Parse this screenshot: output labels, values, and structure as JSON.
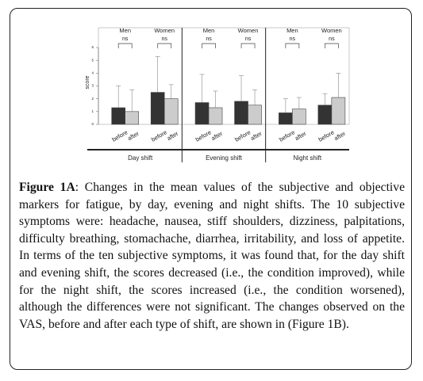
{
  "chart_data": {
    "type": "bar",
    "y_label": "score",
    "ylim": [
      0,
      6
    ],
    "yticks": [
      0,
      1,
      2,
      3,
      4,
      5,
      6
    ],
    "bar_labels": [
      "before",
      "after"
    ],
    "colors": [
      "#333333",
      "#cccccc"
    ],
    "shifts": [
      "Day shift",
      "Evening shift",
      "Night shift"
    ],
    "groups": [
      {
        "sex": "Men",
        "significance": "ns",
        "values": [
          1.3,
          1.0
        ],
        "errors": [
          1.7,
          1.7
        ]
      },
      {
        "sex": "Women",
        "significance": "ns",
        "values": [
          2.5,
          2.0
        ],
        "errors": [
          2.8,
          1.1
        ]
      },
      {
        "sex": "Men",
        "significance": "ns",
        "values": [
          1.7,
          1.3
        ],
        "errors": [
          2.2,
          1.3
        ]
      },
      {
        "sex": "Women",
        "significance": "ns",
        "values": [
          1.8,
          1.5
        ],
        "errors": [
          2.0,
          1.2
        ]
      },
      {
        "sex": "Men",
        "significance": "ns",
        "values": [
          0.9,
          1.2
        ],
        "errors": [
          1.1,
          0.9
        ]
      },
      {
        "sex": "Women",
        "significance": "ns",
        "values": [
          1.5,
          2.1
        ],
        "errors": [
          0.9,
          1.9
        ]
      }
    ]
  },
  "caption": {
    "label": "Figure 1A",
    "text": ": Changes in the mean values of the subjective and objective markers for fatigue, by day, evening and night shifts. The 10 subjective symptoms were: headache, nausea, stiff shoulders, dizziness, palpitations, difficulty breathing, stomachache, diarrhea, irritability, and loss of appetite. In terms of the ten subjective symptoms, it was found that, for the day shift and evening shift, the scores decreased (i.e., the condition improved), while for the night shift, the scores increased (i.e., the condition worsened), although the differences were not significant. The changes observed on the VAS, before and after each type of shift, are shown in (Figure 1B)."
  }
}
